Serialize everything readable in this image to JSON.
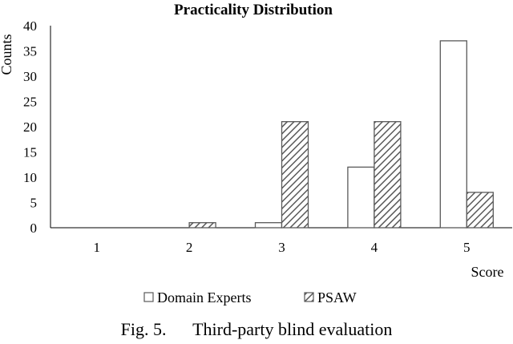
{
  "chart_data": {
    "type": "bar",
    "title": "Practicality Distribution",
    "xlabel": "Score",
    "ylabel": "Counts",
    "categories": [
      "1",
      "2",
      "3",
      "4",
      "5"
    ],
    "series": [
      {
        "name": "Domain Experts",
        "values": [
          0,
          0,
          1,
          12,
          37
        ],
        "fill": "#ffffff",
        "stroke": "#595959",
        "pattern": "none"
      },
      {
        "name": "PSAW",
        "values": [
          0,
          1,
          21,
          21,
          7
        ],
        "fill": "#ffffff",
        "stroke": "#595959",
        "pattern": "diagonal-hatch"
      }
    ],
    "ylim": [
      0,
      40
    ],
    "yticks": [
      0,
      5,
      10,
      15,
      20,
      25,
      30,
      35,
      40
    ],
    "grid": false,
    "legend": "bottom"
  },
  "caption": {
    "label": "Fig. 5.",
    "text": "Third-party blind evaluation"
  }
}
